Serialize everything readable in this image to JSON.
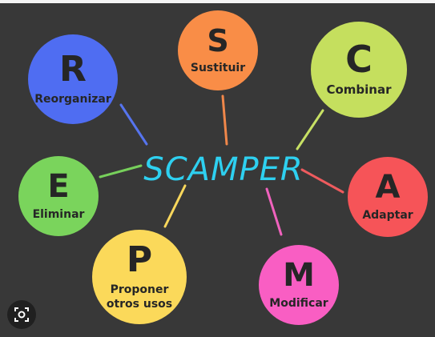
{
  "center": {
    "title": "SCAMPER",
    "color": "#2ed0f0"
  },
  "nodes": [
    {
      "id": "s",
      "letter": "S",
      "label": "Sustituir",
      "color": "#f98d47",
      "line": "#f0874a"
    },
    {
      "id": "c",
      "letter": "C",
      "label": "Combinar",
      "color": "#c5df5e",
      "line": "#c7e064"
    },
    {
      "id": "a",
      "letter": "A",
      "label": "Adaptar",
      "color": "#f65458",
      "line": "#ee5b5e"
    },
    {
      "id": "m",
      "letter": "M",
      "label": "Modificar",
      "color": "#f95ec3",
      "line": "#f062bd"
    },
    {
      "id": "p",
      "letter": "P",
      "label": "Proponer otros usos",
      "color": "#fbd95a",
      "line": "#f8d75c"
    },
    {
      "id": "e",
      "letter": "E",
      "label": "Eliminar",
      "color": "#7ad45c",
      "line": "#77d05b"
    },
    {
      "id": "r",
      "letter": "R",
      "label": "Reorganizar",
      "color": "#4f6df2",
      "line": "#5674ee"
    }
  ],
  "icons": {
    "lens": "lens-search-icon"
  }
}
